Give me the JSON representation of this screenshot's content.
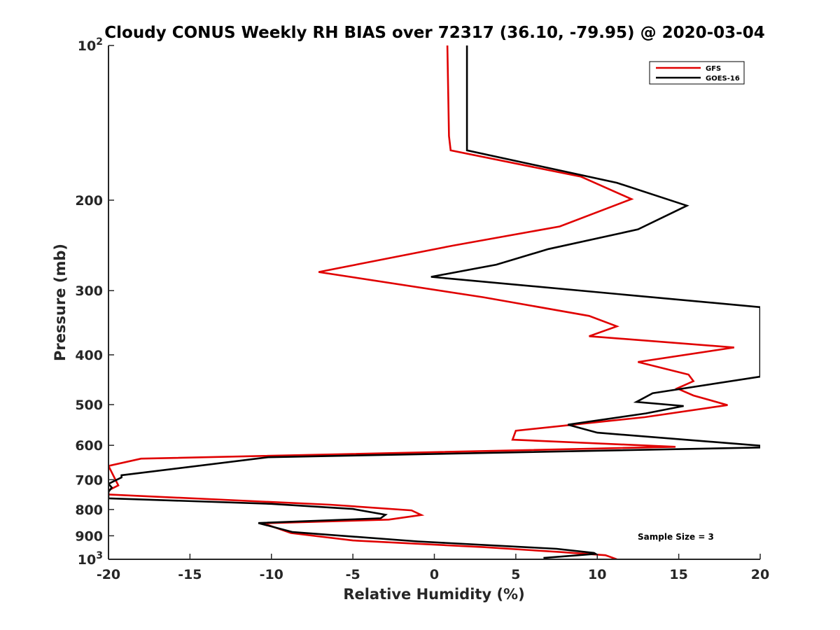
{
  "chart_data": {
    "type": "line",
    "title": "Cloudy CONUS Weekly RH BIAS over 72317 (36.10, -79.95) @ 2020-03-04",
    "xlabel": "Relative Humidity (%)",
    "ylabel": "Pressure (mb)",
    "xlim": [
      -20,
      20
    ],
    "ylim": [
      1000,
      100
    ],
    "yscale": "log",
    "y_reversed": true,
    "grid": false,
    "legend_position": "top-right",
    "x_ticks": [
      -20,
      -15,
      -10,
      -5,
      0,
      5,
      10,
      15,
      20
    ],
    "x_tick_labels": [
      "-20",
      "-15",
      "-10",
      "-5",
      "0",
      "5",
      "10",
      "15",
      "20"
    ],
    "y_ticks": [
      100,
      200,
      300,
      400,
      500,
      600,
      700,
      800,
      900,
      1000
    ],
    "y_tick_labels": [
      {
        "base": "10",
        "exp": "2"
      },
      {
        "base": "200",
        "exp": ""
      },
      {
        "base": "300",
        "exp": ""
      },
      {
        "base": "400",
        "exp": ""
      },
      {
        "base": "500",
        "exp": ""
      },
      {
        "base": "600",
        "exp": ""
      },
      {
        "base": "700",
        "exp": ""
      },
      {
        "base": "800",
        "exp": ""
      },
      {
        "base": "900",
        "exp": ""
      },
      {
        "base": "10",
        "exp": "3"
      }
    ],
    "annotation": "Sample Size = 3",
    "series": [
      {
        "name": "GFS",
        "color": "#e00000",
        "points": [
          [
            0.8,
            100
          ],
          [
            0.9,
            150
          ],
          [
            1.0,
            160
          ],
          [
            9.0,
            180
          ],
          [
            12.1,
            199
          ],
          [
            7.7,
            225
          ],
          [
            1.2,
            245
          ],
          [
            -7.1,
            276
          ],
          [
            3.0,
            309
          ],
          [
            9.5,
            336
          ],
          [
            11.2,
            352
          ],
          [
            9.5,
            368
          ],
          [
            18.4,
            387
          ],
          [
            12.5,
            413
          ],
          [
            15.6,
            437
          ],
          [
            15.9,
            450
          ],
          [
            14.9,
            465
          ],
          [
            15.9,
            480
          ],
          [
            18.0,
            501
          ],
          [
            12.9,
            529
          ],
          [
            5.0,
            562
          ],
          [
            4.8,
            585
          ],
          [
            14.8,
            604
          ],
          [
            -18.0,
            637
          ],
          [
            -20,
            658
          ],
          [
            -19.4,
            718
          ],
          [
            -20,
            734
          ],
          [
            -20,
            748
          ],
          [
            -6.4,
            783
          ],
          [
            -1.4,
            803
          ],
          [
            -0.8,
            820
          ],
          [
            -2.8,
            837
          ],
          [
            -10.5,
            851
          ],
          [
            -8.8,
            889
          ],
          [
            -5.0,
            919
          ],
          [
            3.0,
            947
          ],
          [
            7.7,
            968
          ],
          [
            10.5,
            982
          ],
          [
            11.2,
            1000
          ]
        ]
      },
      {
        "name": "GOES-16",
        "color": "#000000",
        "points": [
          [
            2.0,
            100
          ],
          [
            2.0,
            160
          ],
          [
            11.2,
            185
          ],
          [
            15.5,
            205
          ],
          [
            12.5,
            228
          ],
          [
            7.0,
            249
          ],
          [
            3.8,
            267
          ],
          [
            -0.2,
            282
          ],
          [
            20.0,
            323
          ],
          [
            20.0,
            395
          ],
          [
            20.0,
            441
          ],
          [
            13.4,
            475
          ],
          [
            12.4,
            494
          ],
          [
            15.3,
            503
          ],
          [
            13.0,
            520
          ],
          [
            8.2,
            547
          ],
          [
            10.0,
            567
          ],
          [
            20.0,
            601
          ],
          [
            20.0,
            606
          ],
          [
            -10.2,
            633
          ],
          [
            -19.2,
            686
          ],
          [
            -19.2,
            693
          ],
          [
            -20,
            713
          ],
          [
            -19.8,
            725
          ],
          [
            -20,
            739
          ],
          [
            -20,
            761
          ],
          [
            -10.0,
            780
          ],
          [
            -5.0,
            798
          ],
          [
            -3.0,
            819
          ],
          [
            -3.3,
            832
          ],
          [
            -10.8,
            850
          ],
          [
            -8.7,
            885
          ],
          [
            -1.0,
            923
          ],
          [
            7.5,
            954
          ],
          [
            9.8,
            972
          ],
          [
            9.9,
            976
          ],
          [
            6.7,
            994
          ]
        ]
      }
    ]
  }
}
